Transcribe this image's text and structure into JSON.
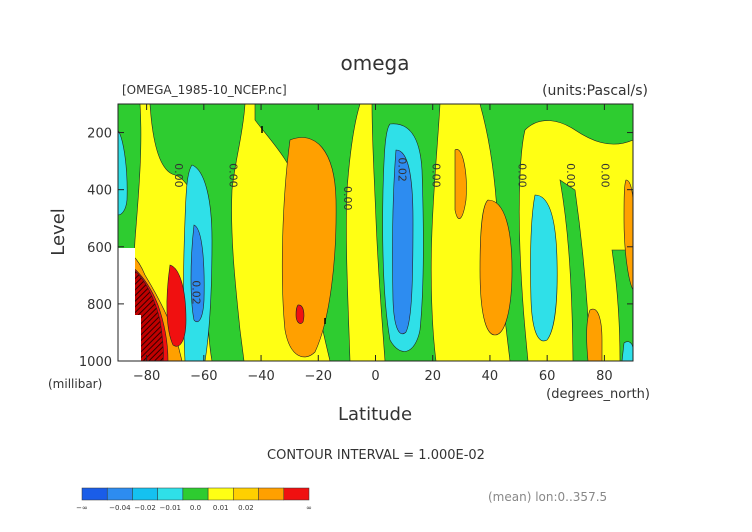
{
  "chart_data": {
    "type": "contour",
    "title": "omega",
    "file_label": "[OMEGA_1985-10_NCEP.nc]",
    "units_label": "(units:Pascal/s)",
    "xlabel": "Latitude",
    "xunits": "(degrees_north)",
    "ylabel": "Level",
    "yunits": "(millibar)",
    "xlim": [
      -90,
      90
    ],
    "ylim": [
      1000,
      100
    ],
    "x_ticks": [
      -80,
      -60,
      -40,
      -20,
      0,
      20,
      40,
      60,
      80
    ],
    "y_ticks": [
      200,
      400,
      600,
      800,
      1000
    ],
    "contour_interval_text": "CONTOUR INTERVAL = 1.000E-02",
    "mean_text": "(mean) lon:0..357.5",
    "contour_labels": [
      {
        "text": "0.00",
        "lat": -70,
        "lev": 350
      },
      {
        "text": "0.00",
        "lat": -51,
        "lev": 350
      },
      {
        "text": "0.00",
        "lat": -11,
        "lev": 430
      },
      {
        "text": "0.02",
        "lat": 8,
        "lev": 330
      },
      {
        "text": "0.00",
        "lat": 20,
        "lev": 350
      },
      {
        "text": "0.00",
        "lat": 50,
        "lev": 350
      },
      {
        "text": "0.00",
        "lat": 67,
        "lev": 350
      },
      {
        "text": "0.00",
        "lat": 79,
        "lev": 350
      },
      {
        "text": "0.02",
        "lat": -64,
        "lev": 760
      }
    ],
    "colorbar": {
      "colors": [
        "#1a5de8",
        "#2d8cf0",
        "#15c1f0",
        "#2fe0e8",
        "#2ecc30",
        "#ffff14",
        "#ffd000",
        "#ffa000",
        "#f01010"
      ],
      "labels": [
        "-∞",
        "-0.04",
        "-0.02",
        "-0.01",
        "0.0",
        "0.01",
        "0.02",
        "∞"
      ]
    }
  }
}
